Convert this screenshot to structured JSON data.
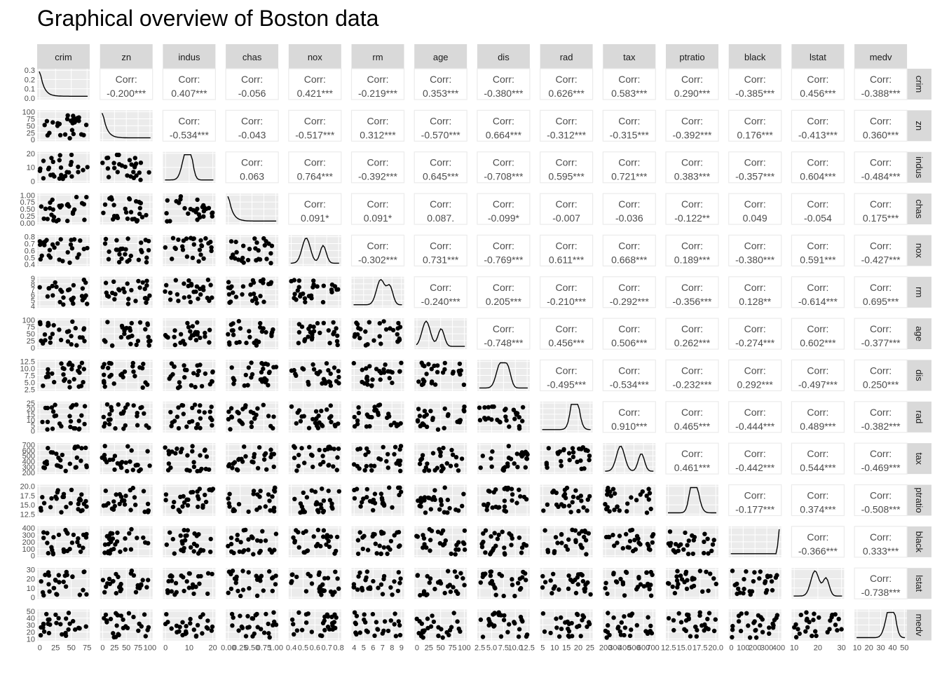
{
  "chart_data": {
    "type": "scatter",
    "title": "Graphical overview of Boston data",
    "variables": [
      "crim",
      "zn",
      "indus",
      "chas",
      "nox",
      "rm",
      "age",
      "dis",
      "rad",
      "tax",
      "ptratio",
      "black",
      "lstat",
      "medv"
    ],
    "corr_label": "Corr:",
    "correlations": [
      [
        "",
        "-0.200***",
        "0.407***",
        "-0.056",
        "0.421***",
        "-0.219***",
        "0.353***",
        "-0.380***",
        "0.626***",
        "0.583***",
        "0.290***",
        "-0.385***",
        "0.456***",
        "-0.388***"
      ],
      [
        "",
        "",
        "-0.534***",
        "-0.043",
        "-0.517***",
        "0.312***",
        "-0.570***",
        "0.664***",
        "-0.312***",
        "-0.315***",
        "-0.392***",
        "0.176***",
        "-0.413***",
        "0.360***"
      ],
      [
        "",
        "",
        "",
        "0.063",
        "0.764***",
        "-0.392***",
        "0.645***",
        "-0.708***",
        "0.595***",
        "0.721***",
        "0.383***",
        "-0.357***",
        "0.604***",
        "-0.484***"
      ],
      [
        "",
        "",
        "",
        "",
        "0.091*",
        "0.091*",
        "0.087.",
        "-0.099*",
        "-0.007",
        "-0.036",
        "-0.122**",
        "0.049",
        "-0.054",
        "0.175***"
      ],
      [
        "",
        "",
        "",
        "",
        "",
        "-0.302***",
        "0.731***",
        "-0.769***",
        "0.611***",
        "0.668***",
        "0.189***",
        "-0.380***",
        "0.591***",
        "-0.427***"
      ],
      [
        "",
        "",
        "",
        "",
        "",
        "",
        "-0.240***",
        "0.205***",
        "-0.210***",
        "-0.292***",
        "-0.356***",
        "0.128**",
        "-0.614***",
        "0.695***"
      ],
      [
        "",
        "",
        "",
        "",
        "",
        "",
        "",
        "-0.748***",
        "0.456***",
        "0.506***",
        "0.262***",
        "-0.274***",
        "0.602***",
        "-0.377***"
      ],
      [
        "",
        "",
        "",
        "",
        "",
        "",
        "",
        "",
        "-0.495***",
        "-0.534***",
        "-0.232***",
        "0.292***",
        "-0.497***",
        "0.250***"
      ],
      [
        "",
        "",
        "",
        "",
        "",
        "",
        "",
        "",
        "",
        "0.910***",
        "0.465***",
        "-0.444***",
        "0.489***",
        "-0.382***"
      ],
      [
        "",
        "",
        "",
        "",
        "",
        "",
        "",
        "",
        "",
        "",
        "0.461***",
        "-0.442***",
        "0.544***",
        "-0.469***"
      ],
      [
        "",
        "",
        "",
        "",
        "",
        "",
        "",
        "",
        "",
        "",
        "",
        "-0.177***",
        "0.374***",
        "-0.508***"
      ],
      [
        "",
        "",
        "",
        "",
        "",
        "",
        "",
        "",
        "",
        "",
        "",
        "",
        "-0.366***",
        "0.333***"
      ],
      [
        "",
        "",
        "",
        "",
        "",
        "",
        "",
        "",
        "",
        "",
        "",
        "",
        "",
        "-0.738***"
      ],
      [
        "",
        "",
        "",
        "",
        "",
        "",
        "",
        "",
        "",
        "",
        "",
        "",
        "",
        ""
      ]
    ],
    "y_ticks": [
      [
        "0.0",
        "0.1",
        "0.2",
        "0.3"
      ],
      [
        "0",
        "25",
        "50",
        "75",
        "100"
      ],
      [
        "0",
        "10",
        "20"
      ],
      [
        "0.00",
        "0.25",
        "0.50",
        "0.75",
        "1.00"
      ],
      [
        "0.4",
        "0.5",
        "0.6",
        "0.7",
        "0.8"
      ],
      [
        "4",
        "5",
        "6",
        "7",
        "8",
        "9"
      ],
      [
        "0",
        "25",
        "50",
        "75",
        "100"
      ],
      [
        "2.5",
        "5.0",
        "7.5",
        "10.0",
        "12.5"
      ],
      [
        "0",
        "5",
        "10",
        "15",
        "20",
        "25"
      ],
      [
        "200",
        "300",
        "400",
        "500",
        "600",
        "700"
      ],
      [
        "12.5",
        "15.0",
        "17.5",
        "20.0"
      ],
      [
        "0",
        "100",
        "200",
        "300",
        "400"
      ],
      [
        "0",
        "10",
        "20",
        "30"
      ],
      [
        "10",
        "20",
        "30",
        "40",
        "50"
      ]
    ],
    "x_ticks": [
      [
        "0",
        "25",
        "50",
        "75"
      ],
      [
        "0",
        "25",
        "50",
        "75",
        "100"
      ],
      [
        "0",
        "10",
        "20"
      ],
      [
        "0.00",
        "0.25",
        "0.50",
        "0.75",
        "1.00"
      ],
      [
        "0.4",
        "0.5",
        "0.6",
        "0.7",
        "0.8"
      ],
      [
        "4",
        "5",
        "6",
        "7",
        "8",
        "9"
      ],
      [
        "0",
        "25",
        "50",
        "75",
        "100"
      ],
      [
        "2.5",
        "5.0",
        "7.5",
        "10.0",
        "12.5"
      ],
      [
        "5",
        "10",
        "15",
        "20",
        "25"
      ],
      [
        "200",
        "300",
        "400",
        "500",
        "600",
        "700"
      ],
      [
        "12.5",
        "15.0",
        "17.5",
        "20.0"
      ],
      [
        "0",
        "100",
        "200",
        "300",
        "400"
      ],
      [
        "10",
        "20",
        "30"
      ],
      [
        "10",
        "20",
        "30",
        "40",
        "50"
      ]
    ],
    "grid": true,
    "panel_background": "#ebebeb",
    "strip_background": "#d9d9d9",
    "point_color": "#000000"
  }
}
